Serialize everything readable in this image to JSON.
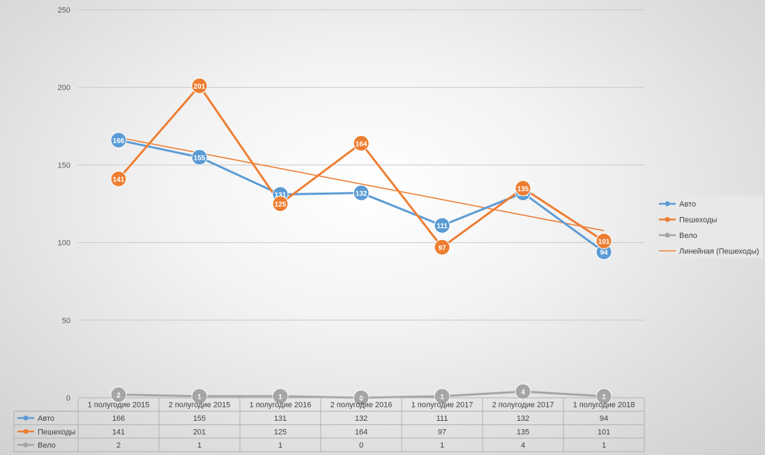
{
  "chart_data": {
    "type": "line",
    "categories": [
      "1 полугодие 2015",
      "2 полугодие 2015",
      "1 полугодие 2016",
      "2 полугодие 2016",
      "1 полугодие 2017",
      "2 полугодие 2017",
      "1 полугодие 2018"
    ],
    "series": [
      {
        "name": "Авто",
        "values": [
          166,
          155,
          131,
          132,
          111,
          132,
          94
        ],
        "color": "#5b9bd5"
      },
      {
        "name": "Пешеходы",
        "values": [
          141,
          201,
          125,
          164,
          97,
          135,
          101
        ],
        "color": "#ed7d31"
      },
      {
        "name": "Вело",
        "values": [
          2,
          1,
          1,
          0,
          1,
          4,
          1
        ],
        "color": "#a5a5a5"
      }
    ],
    "trendline": {
      "name": "Линейная (Пешеходы)",
      "of_series": "Пешеходы",
      "type": "linear",
      "color": "#ed7d31"
    },
    "ylim": [
      0,
      250
    ],
    "yticks": [
      0,
      50,
      100,
      150,
      200,
      250
    ],
    "grid": true,
    "legend_position": "right",
    "data_table": true,
    "data_labels": true
  }
}
